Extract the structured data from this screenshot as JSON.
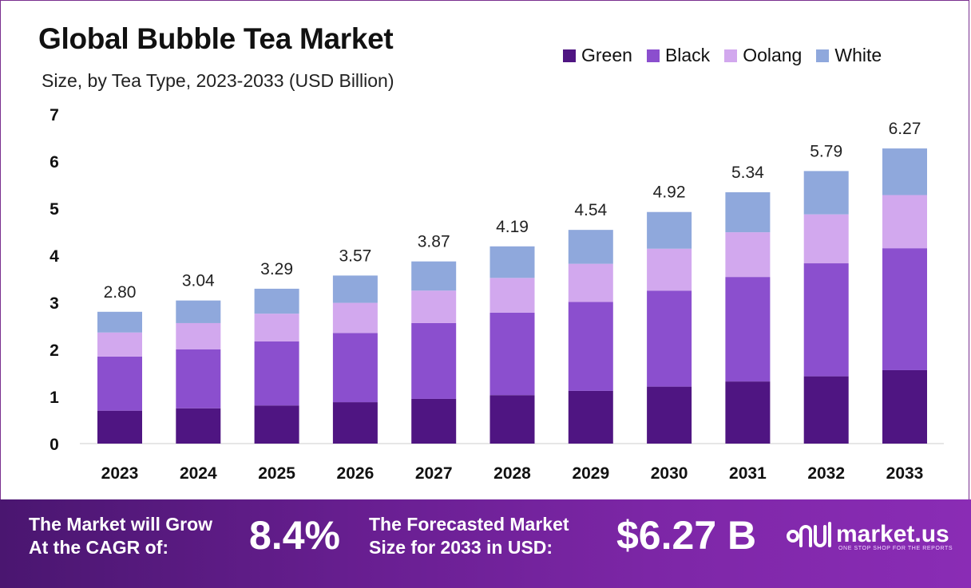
{
  "header": {
    "title": "Global Bubble Tea Market",
    "subtitle": "Size, by Tea Type, 2023-2033 (USD Billion)"
  },
  "legend": [
    {
      "label": "Green",
      "color": "#4f1582"
    },
    {
      "label": "Black",
      "color": "#8b4fce"
    },
    {
      "label": "Oolang",
      "color": "#d2a8ee"
    },
    {
      "label": "White",
      "color": "#8fa8dc"
    }
  ],
  "chart_data": {
    "type": "bar",
    "stacked": true,
    "categories": [
      "2023",
      "2024",
      "2025",
      "2026",
      "2027",
      "2028",
      "2029",
      "2030",
      "2031",
      "2032",
      "2033"
    ],
    "series": [
      {
        "name": "Green",
        "color": "#4f1582",
        "values": [
          0.7,
          0.75,
          0.81,
          0.88,
          0.95,
          1.03,
          1.12,
          1.21,
          1.32,
          1.43,
          1.56
        ]
      },
      {
        "name": "Black",
        "color": "#8b4fce",
        "values": [
          1.15,
          1.25,
          1.36,
          1.47,
          1.61,
          1.75,
          1.89,
          2.04,
          2.22,
          2.4,
          2.59
        ]
      },
      {
        "name": "Oolang",
        "color": "#d2a8ee",
        "values": [
          0.51,
          0.56,
          0.59,
          0.64,
          0.69,
          0.74,
          0.81,
          0.89,
          0.95,
          1.04,
          1.13
        ]
      },
      {
        "name": "White",
        "color": "#8fa8dc",
        "values": [
          0.44,
          0.48,
          0.53,
          0.58,
          0.62,
          0.67,
          0.72,
          0.78,
          0.85,
          0.92,
          0.99
        ]
      }
    ],
    "totals": [
      "2.80",
      "3.04",
      "3.29",
      "3.57",
      "3.87",
      "4.19",
      "4.54",
      "4.92",
      "5.34",
      "5.79",
      "6.27"
    ],
    "yticks": [
      "0",
      "1",
      "2",
      "3",
      "4",
      "5",
      "6",
      "7"
    ],
    "ylim": [
      0,
      7
    ],
    "grid": false,
    "legend_position": "top-right"
  },
  "footer": {
    "cagr_label_line1": "The Market will Grow",
    "cagr_label_line2": "At the CAGR of:",
    "cagr_value": "8.4%",
    "forecast_label_line1": "The Forecasted Market",
    "forecast_label_line2": "Size for 2033 in USD:",
    "forecast_value": "$6.27 B",
    "brand_name": "market.us",
    "brand_tagline": "ONE STOP SHOP FOR THE REPORTS"
  }
}
